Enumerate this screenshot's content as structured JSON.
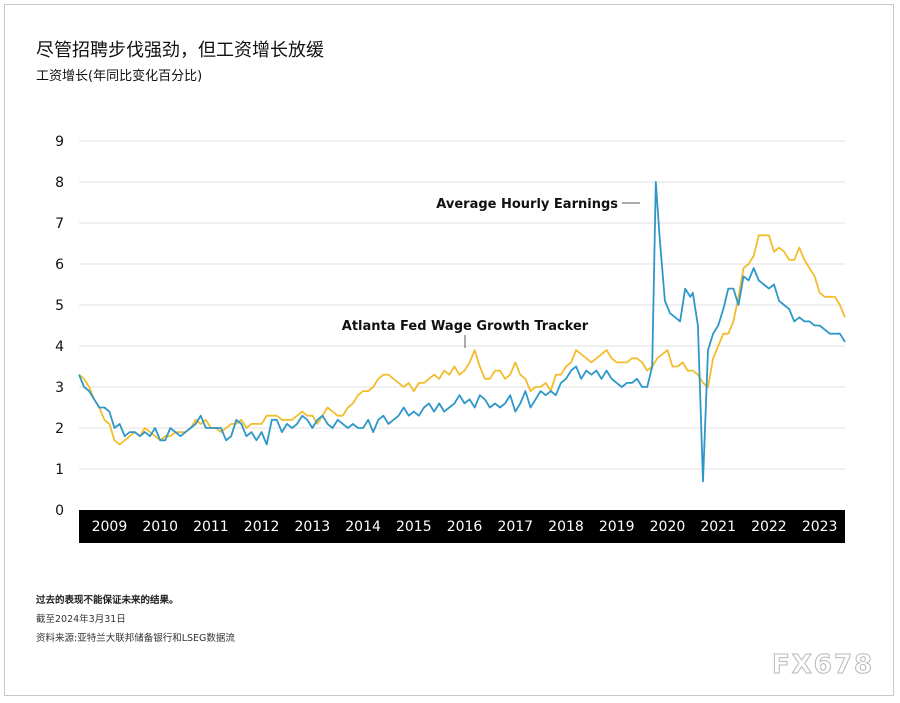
{
  "header": {
    "title": "尽管招聘步伐强劲，但工资增长放缓",
    "subtitle": "工资增长(年同比变化百分比)"
  },
  "footer": {
    "disclaimer": "过去的表现不能保证未来的结果。",
    "as_of": "截至2024年3月31日",
    "source": "资料来源:亚特兰大联邦储备银行和LSEG数据流"
  },
  "watermark": "FX678",
  "colors": {
    "ahe": "#2e97c9",
    "atlanta": "#f2bd2c",
    "grid": "#e2e2e2",
    "axis_band": "#000000"
  },
  "chart_data": {
    "type": "line",
    "x_unit": "year",
    "xlim": [
      2008.9,
      2024.0
    ],
    "ylim": [
      0,
      9
    ],
    "yticks": [
      "0",
      "1",
      "2",
      "3",
      "4",
      "5",
      "6",
      "7",
      "8",
      "9"
    ],
    "xticks": [
      "2009",
      "2010",
      "2011",
      "2012",
      "2013",
      "2014",
      "2015",
      "2016",
      "2017",
      "2018",
      "2019",
      "2020",
      "2021",
      "2022",
      "2023"
    ],
    "grid": true,
    "series": [
      {
        "name": "Average Hourly Earnings",
        "color": "#2e97c9",
        "points": [
          [
            2008.9,
            3.3
          ],
          [
            2009.0,
            3.0
          ],
          [
            2009.1,
            2.9
          ],
          [
            2009.2,
            2.7
          ],
          [
            2009.3,
            2.5
          ],
          [
            2009.4,
            2.5
          ],
          [
            2009.5,
            2.4
          ],
          [
            2009.6,
            2.0
          ],
          [
            2009.7,
            2.1
          ],
          [
            2009.8,
            1.8
          ],
          [
            2009.9,
            1.9
          ],
          [
            2010.0,
            1.9
          ],
          [
            2010.1,
            1.8
          ],
          [
            2010.2,
            1.9
          ],
          [
            2010.3,
            1.8
          ],
          [
            2010.4,
            2.0
          ],
          [
            2010.5,
            1.7
          ],
          [
            2010.6,
            1.7
          ],
          [
            2010.7,
            2.0
          ],
          [
            2010.8,
            1.9
          ],
          [
            2010.9,
            1.8
          ],
          [
            2011.0,
            1.9
          ],
          [
            2011.1,
            2.0
          ],
          [
            2011.2,
            2.1
          ],
          [
            2011.3,
            2.3
          ],
          [
            2011.4,
            2.0
          ],
          [
            2011.5,
            2.0
          ],
          [
            2011.6,
            2.0
          ],
          [
            2011.7,
            2.0
          ],
          [
            2011.8,
            1.7
          ],
          [
            2011.9,
            1.8
          ],
          [
            2012.0,
            2.2
          ],
          [
            2012.1,
            2.1
          ],
          [
            2012.2,
            1.8
          ],
          [
            2012.3,
            1.9
          ],
          [
            2012.4,
            1.7
          ],
          [
            2012.5,
            1.9
          ],
          [
            2012.6,
            1.6
          ],
          [
            2012.7,
            2.2
          ],
          [
            2012.8,
            2.2
          ],
          [
            2012.9,
            1.9
          ],
          [
            2013.0,
            2.1
          ],
          [
            2013.1,
            2.0
          ],
          [
            2013.2,
            2.1
          ],
          [
            2013.3,
            2.3
          ],
          [
            2013.4,
            2.2
          ],
          [
            2013.5,
            2.0
          ],
          [
            2013.6,
            2.2
          ],
          [
            2013.7,
            2.3
          ],
          [
            2013.8,
            2.1
          ],
          [
            2013.9,
            2.0
          ],
          [
            2014.0,
            2.2
          ],
          [
            2014.1,
            2.1
          ],
          [
            2014.2,
            2.0
          ],
          [
            2014.3,
            2.1
          ],
          [
            2014.4,
            2.0
          ],
          [
            2014.5,
            2.0
          ],
          [
            2014.6,
            2.2
          ],
          [
            2014.7,
            1.9
          ],
          [
            2014.8,
            2.2
          ],
          [
            2014.9,
            2.3
          ],
          [
            2015.0,
            2.1
          ],
          [
            2015.1,
            2.2
          ],
          [
            2015.2,
            2.3
          ],
          [
            2015.3,
            2.5
          ],
          [
            2015.4,
            2.3
          ],
          [
            2015.5,
            2.4
          ],
          [
            2015.6,
            2.3
          ],
          [
            2015.7,
            2.5
          ],
          [
            2015.8,
            2.6
          ],
          [
            2015.9,
            2.4
          ],
          [
            2016.0,
            2.6
          ],
          [
            2016.1,
            2.4
          ],
          [
            2016.2,
            2.5
          ],
          [
            2016.3,
            2.6
          ],
          [
            2016.4,
            2.8
          ],
          [
            2016.5,
            2.6
          ],
          [
            2016.6,
            2.7
          ],
          [
            2016.7,
            2.5
          ],
          [
            2016.8,
            2.8
          ],
          [
            2016.9,
            2.7
          ],
          [
            2017.0,
            2.5
          ],
          [
            2017.1,
            2.6
          ],
          [
            2017.2,
            2.5
          ],
          [
            2017.3,
            2.6
          ],
          [
            2017.4,
            2.8
          ],
          [
            2017.5,
            2.4
          ],
          [
            2017.6,
            2.6
          ],
          [
            2017.7,
            2.9
          ],
          [
            2017.8,
            2.5
          ],
          [
            2017.9,
            2.7
          ],
          [
            2018.0,
            2.9
          ],
          [
            2018.1,
            2.8
          ],
          [
            2018.2,
            2.9
          ],
          [
            2018.3,
            2.8
          ],
          [
            2018.4,
            3.1
          ],
          [
            2018.5,
            3.2
          ],
          [
            2018.6,
            3.4
          ],
          [
            2018.7,
            3.5
          ],
          [
            2018.8,
            3.2
          ],
          [
            2018.9,
            3.4
          ],
          [
            2019.0,
            3.3
          ],
          [
            2019.1,
            3.4
          ],
          [
            2019.2,
            3.2
          ],
          [
            2019.3,
            3.4
          ],
          [
            2019.4,
            3.2
          ],
          [
            2019.5,
            3.1
          ],
          [
            2019.6,
            3.0
          ],
          [
            2019.7,
            3.1
          ],
          [
            2019.8,
            3.1
          ],
          [
            2019.9,
            3.2
          ],
          [
            2020.0,
            3.0
          ],
          [
            2020.1,
            3.0
          ],
          [
            2020.2,
            3.5
          ],
          [
            2020.27,
            8.0
          ],
          [
            2020.35,
            6.6
          ],
          [
            2020.45,
            5.1
          ],
          [
            2020.55,
            4.8
          ],
          [
            2020.65,
            4.7
          ],
          [
            2020.75,
            4.6
          ],
          [
            2020.85,
            5.4
          ],
          [
            2020.95,
            5.2
          ],
          [
            2021.0,
            5.3
          ],
          [
            2021.1,
            4.5
          ],
          [
            2021.2,
            0.7
          ],
          [
            2021.3,
            3.9
          ],
          [
            2021.4,
            4.3
          ],
          [
            2021.5,
            4.5
          ],
          [
            2021.6,
            4.9
          ],
          [
            2021.7,
            5.4
          ],
          [
            2021.8,
            5.4
          ],
          [
            2021.9,
            5.0
          ],
          [
            2022.0,
            5.7
          ],
          [
            2022.1,
            5.6
          ],
          [
            2022.2,
            5.9
          ],
          [
            2022.3,
            5.6
          ],
          [
            2022.4,
            5.5
          ],
          [
            2022.5,
            5.4
          ],
          [
            2022.6,
            5.5
          ],
          [
            2022.7,
            5.1
          ],
          [
            2022.8,
            5.0
          ],
          [
            2022.9,
            4.9
          ],
          [
            2023.0,
            4.6
          ],
          [
            2023.1,
            4.7
          ],
          [
            2023.2,
            4.6
          ],
          [
            2023.3,
            4.6
          ],
          [
            2023.4,
            4.5
          ],
          [
            2023.5,
            4.5
          ],
          [
            2023.6,
            4.4
          ],
          [
            2023.7,
            4.3
          ],
          [
            2023.8,
            4.3
          ],
          [
            2023.9,
            4.3
          ],
          [
            2024.0,
            4.1
          ]
        ]
      },
      {
        "name": "Atlanta Fed Wage Growth Tracker",
        "color": "#f2bd2c",
        "points": [
          [
            2008.9,
            3.3
          ],
          [
            2009.0,
            3.2
          ],
          [
            2009.1,
            3.0
          ],
          [
            2009.2,
            2.7
          ],
          [
            2009.3,
            2.5
          ],
          [
            2009.4,
            2.2
          ],
          [
            2009.5,
            2.1
          ],
          [
            2009.6,
            1.7
          ],
          [
            2009.7,
            1.6
          ],
          [
            2009.8,
            1.7
          ],
          [
            2009.9,
            1.8
          ],
          [
            2010.0,
            1.9
          ],
          [
            2010.1,
            1.8
          ],
          [
            2010.2,
            2.0
          ],
          [
            2010.3,
            1.9
          ],
          [
            2010.4,
            1.8
          ],
          [
            2010.5,
            1.7
          ],
          [
            2010.6,
            1.8
          ],
          [
            2010.7,
            1.8
          ],
          [
            2010.8,
            1.9
          ],
          [
            2010.9,
            1.9
          ],
          [
            2011.0,
            1.9
          ],
          [
            2011.1,
            2.0
          ],
          [
            2011.2,
            2.2
          ],
          [
            2011.3,
            2.1
          ],
          [
            2011.4,
            2.2
          ],
          [
            2011.5,
            2.0
          ],
          [
            2011.6,
            2.0
          ],
          [
            2011.7,
            1.9
          ],
          [
            2011.8,
            2.0
          ],
          [
            2011.9,
            2.1
          ],
          [
            2012.0,
            2.1
          ],
          [
            2012.1,
            2.2
          ],
          [
            2012.2,
            2.0
          ],
          [
            2012.3,
            2.1
          ],
          [
            2012.4,
            2.1
          ],
          [
            2012.5,
            2.1
          ],
          [
            2012.6,
            2.3
          ],
          [
            2012.7,
            2.3
          ],
          [
            2012.8,
            2.3
          ],
          [
            2012.9,
            2.2
          ],
          [
            2013.0,
            2.2
          ],
          [
            2013.1,
            2.2
          ],
          [
            2013.2,
            2.3
          ],
          [
            2013.3,
            2.4
          ],
          [
            2013.4,
            2.3
          ],
          [
            2013.5,
            2.3
          ],
          [
            2013.6,
            2.1
          ],
          [
            2013.7,
            2.3
          ],
          [
            2013.8,
            2.5
          ],
          [
            2013.9,
            2.4
          ],
          [
            2014.0,
            2.3
          ],
          [
            2014.1,
            2.3
          ],
          [
            2014.2,
            2.5
          ],
          [
            2014.3,
            2.6
          ],
          [
            2014.4,
            2.8
          ],
          [
            2014.5,
            2.9
          ],
          [
            2014.6,
            2.9
          ],
          [
            2014.7,
            3.0
          ],
          [
            2014.8,
            3.2
          ],
          [
            2014.9,
            3.3
          ],
          [
            2015.0,
            3.3
          ],
          [
            2015.1,
            3.2
          ],
          [
            2015.2,
            3.1
          ],
          [
            2015.3,
            3.0
          ],
          [
            2015.4,
            3.1
          ],
          [
            2015.5,
            2.9
          ],
          [
            2015.6,
            3.1
          ],
          [
            2015.7,
            3.1
          ],
          [
            2015.8,
            3.2
          ],
          [
            2015.9,
            3.3
          ],
          [
            2016.0,
            3.2
          ],
          [
            2016.1,
            3.4
          ],
          [
            2016.2,
            3.3
          ],
          [
            2016.3,
            3.5
          ],
          [
            2016.4,
            3.3
          ],
          [
            2016.5,
            3.4
          ],
          [
            2016.6,
            3.6
          ],
          [
            2016.7,
            3.9
          ],
          [
            2016.8,
            3.5
          ],
          [
            2016.9,
            3.2
          ],
          [
            2017.0,
            3.2
          ],
          [
            2017.1,
            3.4
          ],
          [
            2017.2,
            3.4
          ],
          [
            2017.3,
            3.2
          ],
          [
            2017.4,
            3.3
          ],
          [
            2017.5,
            3.6
          ],
          [
            2017.6,
            3.3
          ],
          [
            2017.7,
            3.2
          ],
          [
            2017.8,
            2.9
          ],
          [
            2017.9,
            3.0
          ],
          [
            2018.0,
            3.0
          ],
          [
            2018.1,
            3.1
          ],
          [
            2018.2,
            2.9
          ],
          [
            2018.3,
            3.3
          ],
          [
            2018.4,
            3.3
          ],
          [
            2018.5,
            3.5
          ],
          [
            2018.6,
            3.6
          ],
          [
            2018.7,
            3.9
          ],
          [
            2018.8,
            3.8
          ],
          [
            2018.9,
            3.7
          ],
          [
            2019.0,
            3.6
          ],
          [
            2019.1,
            3.7
          ],
          [
            2019.2,
            3.8
          ],
          [
            2019.3,
            3.9
          ],
          [
            2019.4,
            3.7
          ],
          [
            2019.5,
            3.6
          ],
          [
            2019.6,
            3.6
          ],
          [
            2019.7,
            3.6
          ],
          [
            2019.8,
            3.7
          ],
          [
            2019.9,
            3.7
          ],
          [
            2020.0,
            3.6
          ],
          [
            2020.1,
            3.4
          ],
          [
            2020.2,
            3.5
          ],
          [
            2020.3,
            3.7
          ],
          [
            2020.4,
            3.8
          ],
          [
            2020.5,
            3.9
          ],
          [
            2020.6,
            3.5
          ],
          [
            2020.7,
            3.5
          ],
          [
            2020.8,
            3.6
          ],
          [
            2020.9,
            3.4
          ],
          [
            2021.0,
            3.4
          ],
          [
            2021.1,
            3.3
          ],
          [
            2021.2,
            3.1
          ],
          [
            2021.3,
            3.0
          ],
          [
            2021.4,
            3.7
          ],
          [
            2021.5,
            4.0
          ],
          [
            2021.6,
            4.3
          ],
          [
            2021.7,
            4.3
          ],
          [
            2021.8,
            4.6
          ],
          [
            2021.9,
            5.2
          ],
          [
            2022.0,
            5.9
          ],
          [
            2022.1,
            6.0
          ],
          [
            2022.2,
            6.2
          ],
          [
            2022.3,
            6.7
          ],
          [
            2022.4,
            6.7
          ],
          [
            2022.5,
            6.7
          ],
          [
            2022.6,
            6.3
          ],
          [
            2022.7,
            6.4
          ],
          [
            2022.8,
            6.3
          ],
          [
            2022.9,
            6.1
          ],
          [
            2023.0,
            6.1
          ],
          [
            2023.1,
            6.4
          ],
          [
            2023.2,
            6.1
          ],
          [
            2023.3,
            5.9
          ],
          [
            2023.4,
            5.7
          ],
          [
            2023.5,
            5.3
          ],
          [
            2023.6,
            5.2
          ],
          [
            2023.7,
            5.2
          ],
          [
            2023.8,
            5.2
          ],
          [
            2023.9,
            5.0
          ],
          [
            2024.0,
            4.7
          ]
        ]
      }
    ]
  }
}
